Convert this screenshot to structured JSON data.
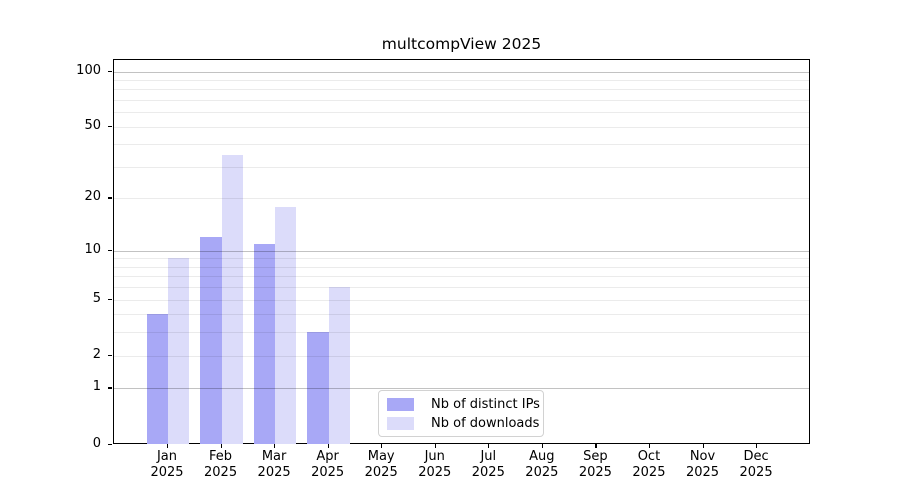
{
  "chart_data": {
    "type": "bar",
    "title": "multcompView 2025",
    "categories": [
      "Jan 2025",
      "Feb 2025",
      "Mar 2025",
      "Apr 2025",
      "May 2025",
      "Jun 2025",
      "Jul 2025",
      "Aug 2025",
      "Sep 2025",
      "Oct 2025",
      "Nov 2025",
      "Dec 2025"
    ],
    "series": [
      {
        "name": "Nb of distinct IPs",
        "color": "#a8a8f6",
        "values": [
          4,
          12,
          11,
          3,
          0,
          0,
          0,
          0,
          0,
          0,
          0,
          0
        ]
      },
      {
        "name": "Nb of downloads",
        "color": "#dcdcfa",
        "values": [
          9,
          35,
          18,
          6,
          0,
          0,
          0,
          0,
          0,
          0,
          0,
          0
        ]
      }
    ],
    "xlabel": "",
    "ylabel": "",
    "yscale": "log1p",
    "yticks": [
      0,
      1,
      2,
      5,
      10,
      20,
      50,
      100
    ],
    "ylim": [
      0,
      100
    ],
    "grid": "horizontal; faint minor lines at 2-9 and 20-90, darker major lines at 1, 10, 100; gridlines drawn over bars",
    "legend_position": "inside lower-center",
    "bar_layout": "grouped pairs per month, distinct-IPs bar left of tick, downloads bar right of tick"
  }
}
